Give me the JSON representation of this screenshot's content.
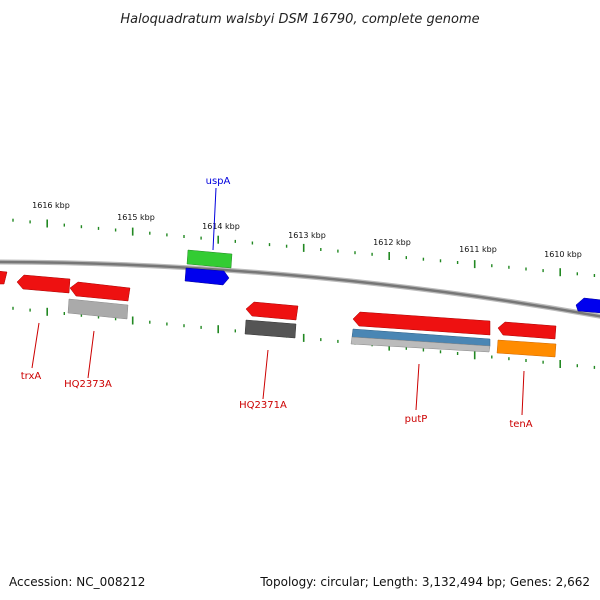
{
  "title": "Haloquadratum walsbyi DSM 16790, complete genome",
  "footer": {
    "accession": "Accession: NC_008212",
    "summary": "Topology: circular; Length: 3,132,494 bp; Genes: 2,662"
  },
  "scale": {
    "unit": "kbp",
    "labels": [
      "1616 kbp",
      "1615 kbp",
      "1614 kbp",
      "1613 kbp",
      "1612 kbp",
      "1611 kbp",
      "1610 kbp"
    ]
  },
  "gene_labels": [
    {
      "id": "uspA",
      "text": "uspA",
      "color": "#0000dd"
    },
    {
      "id": "trxA",
      "text": "trxA",
      "color": "#cc0000"
    },
    {
      "id": "HQ2373A",
      "text": "HQ2373A",
      "color": "#cc0000"
    },
    {
      "id": "HQ2371A",
      "text": "HQ2371A",
      "color": "#cc0000"
    },
    {
      "id": "putP",
      "text": "putP",
      "color": "#cc0000"
    },
    {
      "id": "tenA",
      "text": "tenA",
      "color": "#cc0000"
    }
  ],
  "features": [
    {
      "id": "f1",
      "color": "#ee1111",
      "strand": "forward"
    },
    {
      "id": "f2",
      "color": "#ee1111",
      "strand": "reverse"
    },
    {
      "id": "f3",
      "color": "#ee1111",
      "strand": "reverse"
    },
    {
      "id": "f4",
      "color": "#33cc33",
      "strand": "forward"
    },
    {
      "id": "f5",
      "color": "#0000ee",
      "strand": "forward"
    },
    {
      "id": "f6",
      "color": "#ee1111",
      "strand": "reverse"
    },
    {
      "id": "f7",
      "color": "#ee1111",
      "strand": "reverse"
    },
    {
      "id": "f8",
      "color": "#ee1111",
      "strand": "reverse"
    },
    {
      "id": "f9",
      "color": "#0000ee",
      "strand": "reverse"
    },
    {
      "id": "f10",
      "color": "#aaaaaa",
      "strand": "none"
    },
    {
      "id": "f11",
      "color": "#555555",
      "strand": "none"
    },
    {
      "id": "f12",
      "color": "#4a86b4",
      "strand": "none"
    },
    {
      "id": "f13",
      "color": "#999999",
      "strand": "none"
    },
    {
      "id": "f14",
      "color": "#ff8c00",
      "strand": "none"
    }
  ],
  "colors": {
    "backbone": "#888888",
    "tick": "#228822"
  }
}
